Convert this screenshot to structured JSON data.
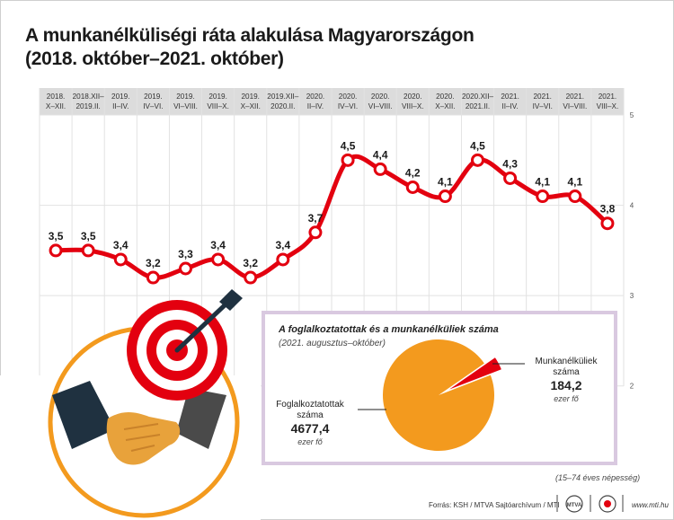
{
  "title_line1": "A munkanélküliségi ráta alakulása Magyarországon",
  "title_line2": "(2018. október–2021. október)",
  "chart_data": {
    "type": "line",
    "title": "A munkanélküliségi ráta alakulása Magyarországon",
    "subtitle": "(2018. október–2021. október)",
    "xlabel": "",
    "ylabel": "",
    "categories": [
      [
        "2018.",
        "X–XII."
      ],
      [
        "2018.XII–",
        "2019.II."
      ],
      [
        "2019.",
        "II–IV."
      ],
      [
        "2019.",
        "IV–VI."
      ],
      [
        "2019.",
        "VI–VIII."
      ],
      [
        "2019.",
        "VIII–X."
      ],
      [
        "2019.",
        "X–XII."
      ],
      [
        "2019.XII–",
        "2020.II."
      ],
      [
        "2020.",
        "II–IV."
      ],
      [
        "2020.",
        "IV–VI."
      ],
      [
        "2020.",
        "VI–VIII."
      ],
      [
        "2020.",
        "VIII–X."
      ],
      [
        "2020.",
        "X–XII."
      ],
      [
        "2020.XII–",
        "2021.II."
      ],
      [
        "2021.",
        "II–IV."
      ],
      [
        "2021.",
        "IV–VI."
      ],
      [
        "2021.",
        "VI–VIII."
      ],
      [
        "2021.",
        "VIII–X."
      ]
    ],
    "values": [
      3.5,
      3.5,
      3.4,
      3.2,
      3.3,
      3.4,
      3.2,
      3.4,
      3.7,
      4.5,
      4.4,
      4.2,
      4.1,
      4.5,
      4.3,
      4.1,
      4.1,
      3.8
    ],
    "data_labels": [
      "3,5",
      "3,5",
      "3,4",
      "3,2",
      "3,3",
      "3,4",
      "3,2",
      "3,4",
      "3,7",
      "4,5",
      "4,4",
      "4,2",
      "4,1",
      "4,5",
      "4,3",
      "4,1",
      "4,1",
      "3,8"
    ],
    "y_ticks": [
      2,
      3,
      4,
      5
    ],
    "ylim": [
      1.5,
      5.1
    ],
    "grid": true,
    "line_color": "#e3000f",
    "marker_fill": "#ffffff",
    "header_band_color": "#dcdcdc"
  },
  "inset": {
    "title": "A foglalkoztatottak és a munkanélküliek száma",
    "subtitle": "(2021. augusztus–október)",
    "chart_data": {
      "type": "pie",
      "slices": [
        {
          "label_lines": [
            "Foglalkoztatottak",
            "száma"
          ],
          "value": 4677.4,
          "value_text": "4677,4",
          "unit": "ezer fő",
          "color": "#f39a1e"
        },
        {
          "label_lines": [
            "Munkanélküliek",
            "száma"
          ],
          "value": 184.2,
          "value_text": "184,2",
          "unit": "ezer fő",
          "color": "#e3000f"
        }
      ]
    },
    "border_color": "#d9c9e0"
  },
  "footnote": "(15–74 éves népesség)",
  "source": "Forrás: KSH / MTVA Sajtóarchívum / MTI",
  "site": "www.mti.hu"
}
